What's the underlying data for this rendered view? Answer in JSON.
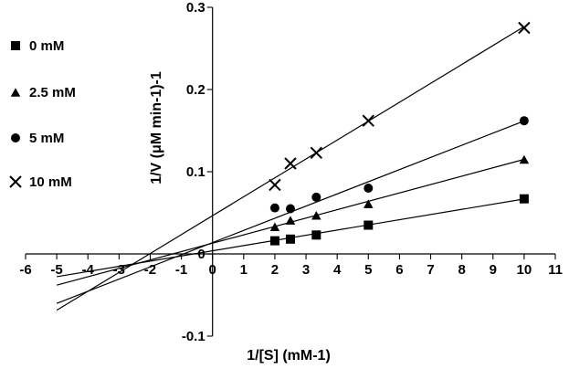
{
  "chart_data": {
    "type": "scatter",
    "title": "",
    "xlabel": "1/[S] (mM-1)",
    "ylabel": "1/V (μM min-1)-1",
    "xlim": [
      -6,
      11
    ],
    "ylim": [
      -0.1,
      0.3
    ],
    "x_ticks": [
      -6,
      -5,
      -4,
      -3,
      -2,
      -1,
      0,
      1,
      2,
      3,
      4,
      5,
      6,
      7,
      8,
      9,
      10,
      11
    ],
    "y_ticks": [
      -0.1,
      0,
      0.1,
      0.2,
      0.3
    ],
    "x_tick_labels": [
      "-6",
      "-5",
      "-4",
      "-3",
      "-2",
      "-1",
      "0",
      "1",
      "2",
      "3",
      "4",
      "5",
      "6",
      "7",
      "8",
      "9",
      "10",
      "11"
    ],
    "y_tick_labels": [
      "-0.1",
      "0",
      "0.1",
      "0.2",
      "0.3"
    ],
    "legend_position": "left",
    "series": [
      {
        "name": "0 mM",
        "marker": "square",
        "x": [
          2,
          2.5,
          3.33,
          5,
          10
        ],
        "y": [
          0.016,
          0.018,
          0.023,
          0.035,
          0.067
        ],
        "fit": {
          "slope": 0.0063,
          "intercept": 0.0038,
          "x_range": [
            -5,
            10
          ]
        }
      },
      {
        "name": "2.5 mM",
        "marker": "triangle",
        "x": [
          2,
          2.5,
          3.33,
          5,
          10
        ],
        "y": [
          0.033,
          0.041,
          0.047,
          0.061,
          0.115
        ],
        "fit": {
          "slope": 0.0102,
          "intercept": 0.013,
          "x_range": [
            -5,
            10
          ]
        }
      },
      {
        "name": "5 mM",
        "marker": "circle",
        "x": [
          2,
          2.5,
          3.33,
          5,
          10
        ],
        "y": [
          0.056,
          0.055,
          0.069,
          0.08,
          0.162
        ],
        "fit": {
          "slope": 0.0148,
          "intercept": 0.0138,
          "x_range": [
            -5,
            10
          ]
        }
      },
      {
        "name": "10 mM",
        "marker": "cross",
        "x": [
          2,
          2.5,
          3.33,
          5,
          10
        ],
        "y": [
          0.084,
          0.11,
          0.123,
          0.162,
          0.275
        ],
        "fit": {
          "slope": 0.023,
          "intercept": 0.0465,
          "x_range": [
            -5,
            10
          ]
        }
      }
    ]
  }
}
